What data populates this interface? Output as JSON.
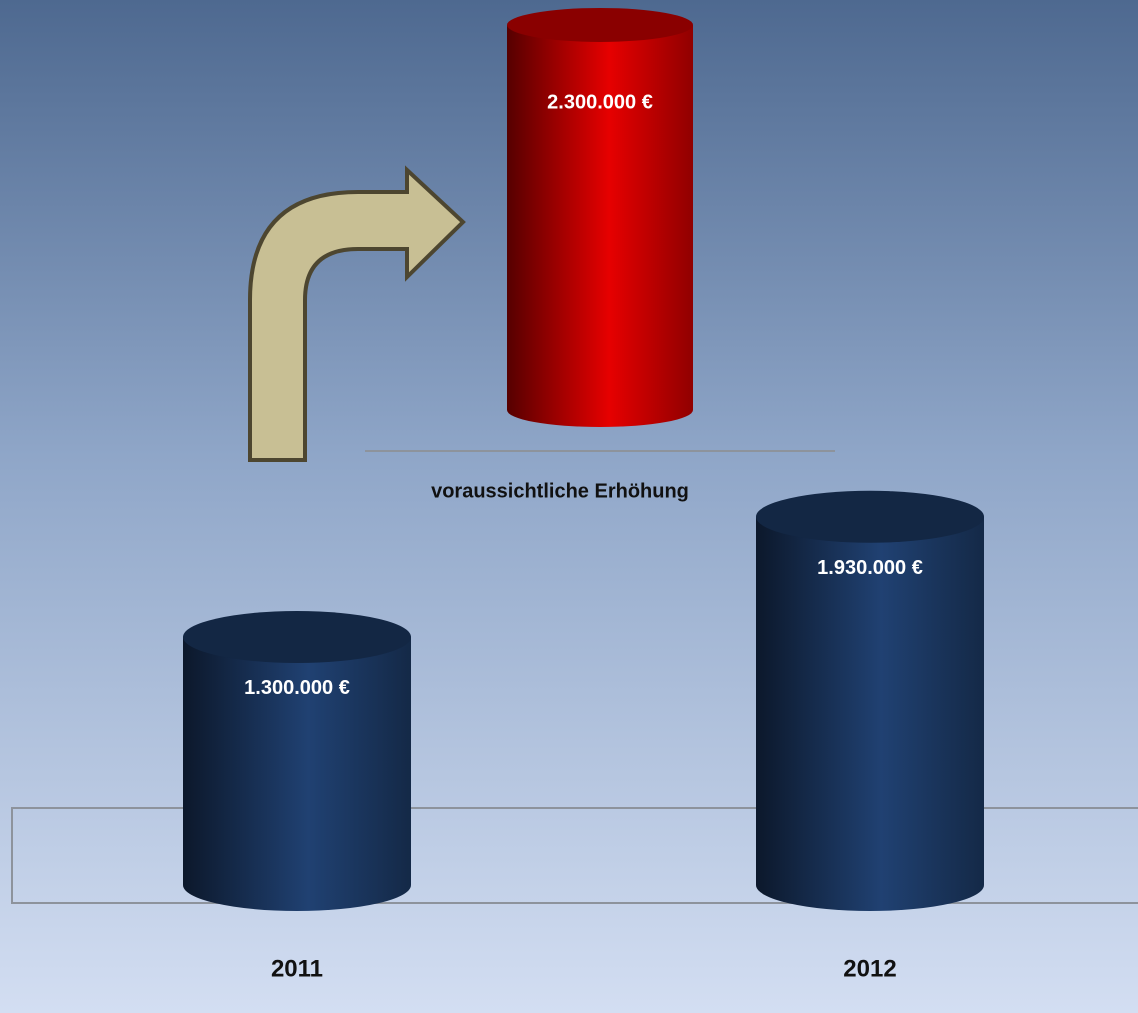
{
  "chart_data": [
    {
      "type": "bar",
      "shape": "cylinder",
      "categories": [
        "2011",
        "2012"
      ],
      "values": [
        1300000,
        1930000
      ],
      "value_labels": [
        "1.300.000 €",
        "1.930.000 €"
      ],
      "color": "#1b365f"
    },
    {
      "type": "bar",
      "shape": "cylinder",
      "categories": [
        "voraussichtliche Erhöhung"
      ],
      "values": [
        2300000
      ],
      "value_labels": [
        "2.300.000 €"
      ],
      "color": "#c00000"
    }
  ]
}
